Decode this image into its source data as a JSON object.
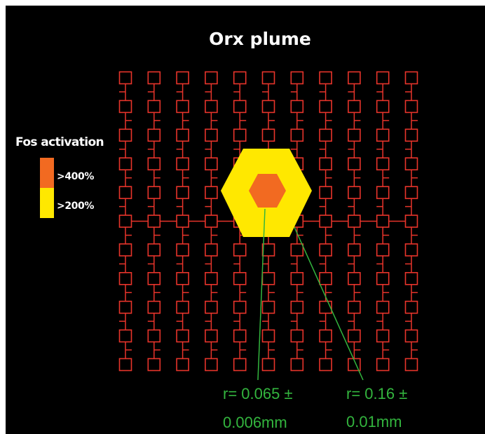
{
  "title": "Orx plume",
  "legend": {
    "title": "Fos activation",
    "items": [
      {
        "label": ">400%",
        "color": "#f26a21"
      },
      {
        "label": ">200%",
        "color": "#ffe800"
      }
    ]
  },
  "grid": {
    "columns": 11,
    "rows": 11,
    "color": "#e8342b"
  },
  "annotations": [
    {
      "line1": "r= 0.065 ±",
      "line2": "0.006mm"
    },
    {
      "line1": "r= 0.16 ±",
      "line2": "0.01mm"
    }
  ],
  "colors": {
    "background": "#000000",
    "annotation": "#33b53e",
    "inner_hexagon": "#f26a21",
    "outer_hexagon": "#ffe800"
  }
}
